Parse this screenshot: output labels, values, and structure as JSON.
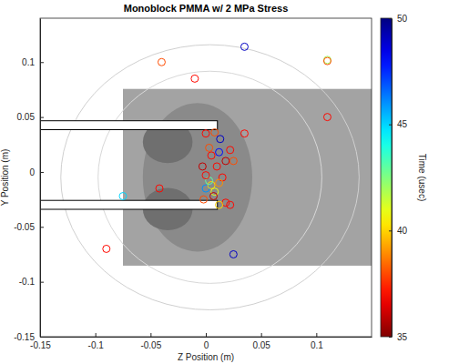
{
  "chart_data": {
    "type": "scatter",
    "title": "Monoblock PMMA w/ 2 MPa Stress",
    "x_label": "Z Position (m)",
    "y_label": "Y Position (m)",
    "marker": "circle",
    "x": [
      -0.04,
      -0.01,
      0.035,
      0.11,
      0.11,
      0.11,
      -0.075,
      -0.09,
      0.025,
      -0.042,
      0.035,
      0.013,
      0.012,
      0.0,
      0.008,
      0.022,
      0.018,
      0.005,
      0.003,
      -0.003,
      0.01,
      0.025,
      0.015,
      0.0,
      0.005,
      0.008,
      0.012,
      0.003,
      0.018,
      0.012,
      0.022,
      -0.002,
      0.007,
      0.0
    ],
    "y": [
      0.1,
      0.085,
      0.114,
      0.102,
      0.101,
      0.05,
      -0.022,
      -0.07,
      -0.075,
      -0.015,
      0.035,
      0.03,
      0.018,
      0.035,
      0.036,
      0.02,
      0.01,
      0.015,
      0.022,
      0.005,
      0.005,
      0.01,
      -0.005,
      -0.015,
      -0.012,
      -0.018,
      -0.01,
      -0.008,
      -0.028,
      -0.03,
      -0.03,
      -0.025,
      -0.022,
      -0.003
    ],
    "time": [
      38,
      37,
      49,
      42,
      38,
      37,
      45,
      37,
      49,
      37,
      37,
      49,
      48,
      37,
      38,
      37,
      36,
      37,
      38,
      36,
      37,
      38,
      37,
      46,
      40,
      41,
      39,
      43,
      37,
      40,
      37,
      38,
      36,
      37
    ],
    "xlim": [
      -0.15,
      0.15
    ],
    "xticks": [
      -0.15,
      -0.1,
      -0.05,
      0,
      0.05,
      0.1
    ],
    "ylim": [
      -0.15,
      0.14
    ],
    "yticks": [
      -0.15,
      -0.1,
      -0.05,
      0,
      0.05,
      0.1
    ],
    "colorbar": {
      "label": "Time (usec)",
      "range": [
        35,
        50
      ],
      "ticks": [
        35,
        40,
        45,
        50
      ]
    }
  }
}
